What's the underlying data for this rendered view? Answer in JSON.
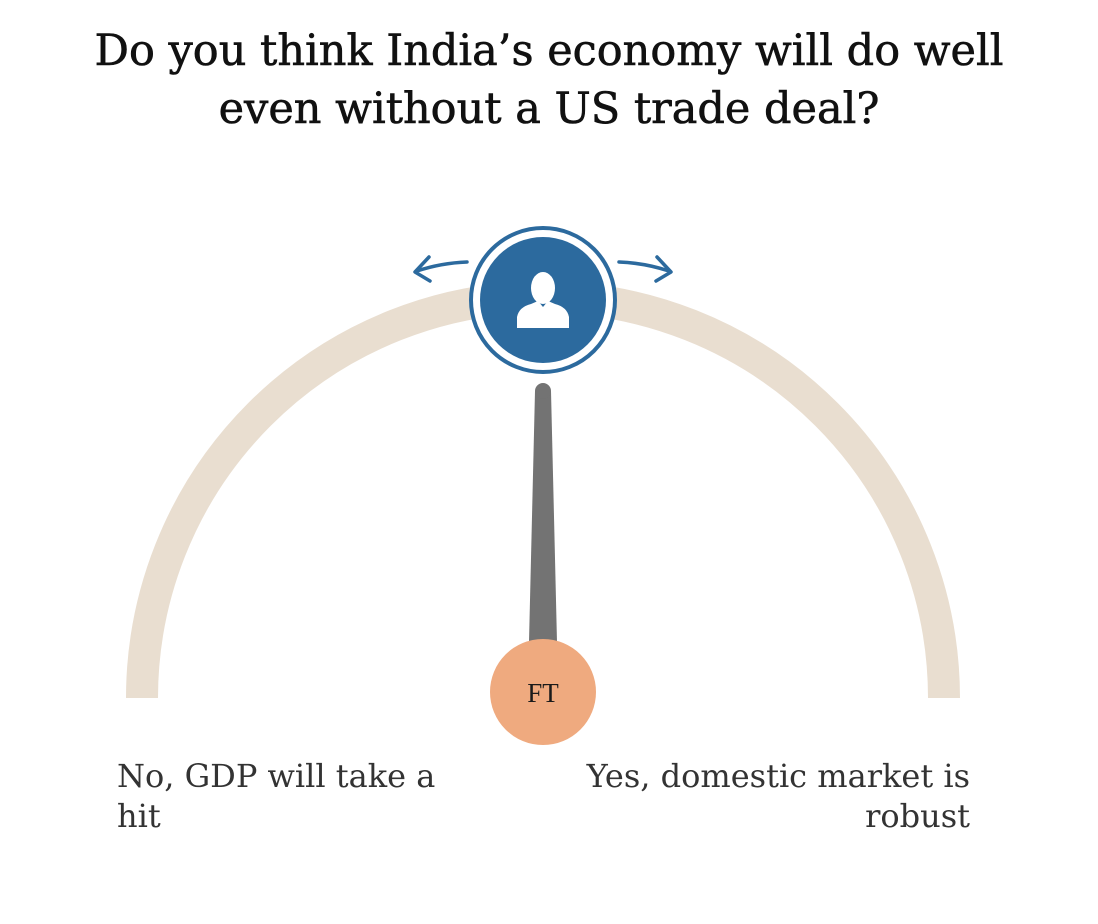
{
  "poll": {
    "question_line1": "Do you think India’s economy will do well",
    "question_line2": "even without a US trade deal?",
    "answer_left": "No, GDP will take a hit",
    "answer_right": "Yes, domestic market is robust",
    "ft_badge": "FT",
    "user_marker_icon": "user-silhouette-icon",
    "drag_arrow_icons": [
      "arrow-left-curved-icon",
      "arrow-right-curved-icon"
    ]
  },
  "colors": {
    "arc_track": "#e9ded0",
    "user_marker": "#2c6a9e",
    "ft_needle": "#737373",
    "ft_badge": "#efaa7f",
    "question_text": "#111111",
    "answer_text": "#333333"
  }
}
